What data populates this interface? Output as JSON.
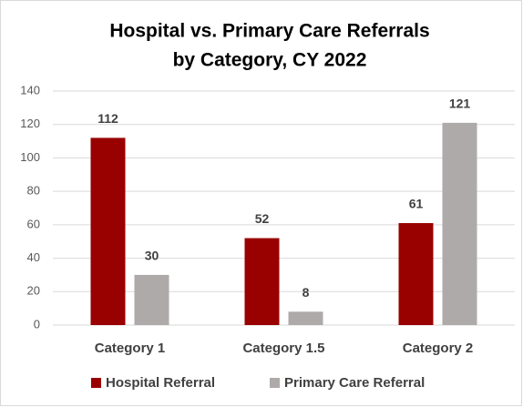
{
  "chart_data": {
    "type": "bar",
    "title": [
      "Hospital vs. Primary Care Referrals",
      "by Category, CY 2022"
    ],
    "categories": [
      "Category 1",
      "Category 1.5",
      "Category 2"
    ],
    "series": [
      {
        "name": "Hospital Referral",
        "color": "#990000",
        "values": [
          112,
          52,
          61
        ]
      },
      {
        "name": "Primary Care Referral",
        "color": "#aeaaaa",
        "values": [
          30,
          8,
          121
        ]
      }
    ],
    "ylim": [
      0,
      140
    ],
    "yticks": [
      0,
      20,
      40,
      60,
      80,
      100,
      120,
      140
    ],
    "grid": true,
    "legend": "bottom"
  }
}
